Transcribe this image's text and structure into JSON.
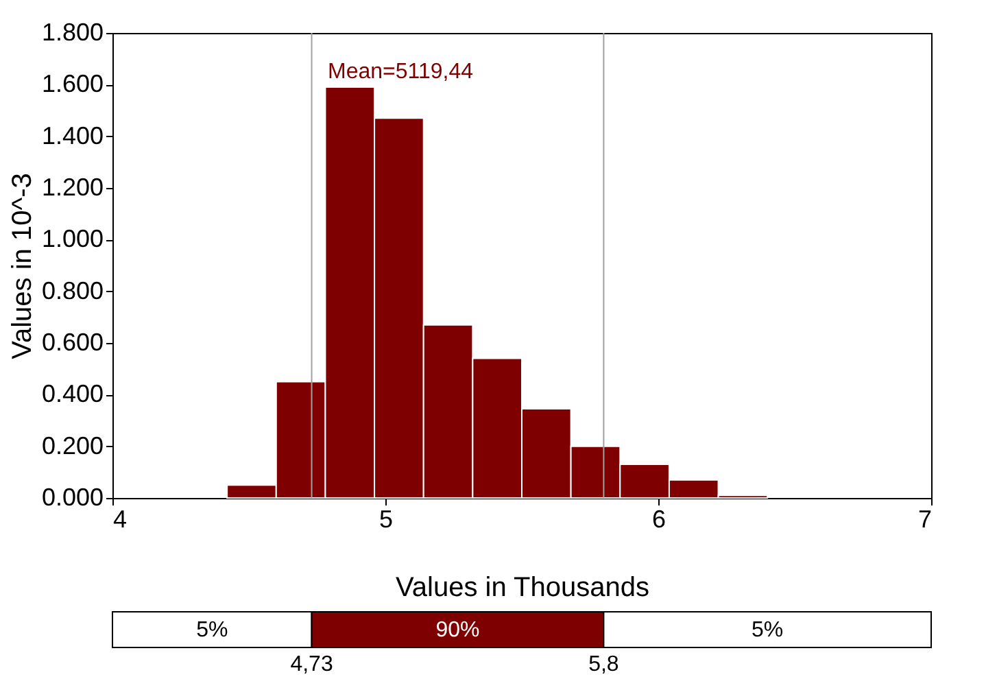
{
  "chart_data": {
    "type": "histogram",
    "xlabel": "Values in Thousands",
    "ylabel": "Values in 10^-3",
    "bins": [
      4.42,
      4.6,
      4.78,
      4.96,
      5.14,
      5.32,
      5.5,
      5.68,
      5.86,
      6.04,
      6.22,
      6.4
    ],
    "values": [
      0.05,
      0.45,
      1.59,
      1.47,
      0.67,
      0.54,
      0.345,
      0.2,
      0.13,
      0.07,
      0.01
    ],
    "color": "#7f0000",
    "xlim": [
      4,
      7
    ],
    "xticks": [
      {
        "value": 4,
        "label": "4"
      },
      {
        "value": 5,
        "label": "5"
      },
      {
        "value": 6,
        "label": "6"
      },
      {
        "value": 7,
        "label": "7"
      }
    ],
    "ylim": [
      0,
      1.8
    ],
    "yticks": [
      {
        "value": 0,
        "label": "0.000"
      },
      {
        "value": 0.2,
        "label": "0.200"
      },
      {
        "value": 0.4,
        "label": "0.400"
      },
      {
        "value": 0.6,
        "label": "0.600"
      },
      {
        "value": 0.8,
        "label": "0.800"
      },
      {
        "value": 1.0,
        "label": "1.000"
      },
      {
        "value": 1.2,
        "label": "1.200"
      },
      {
        "value": 1.4,
        "label": "1.400"
      },
      {
        "value": 1.6,
        "label": "1.600"
      },
      {
        "value": 1.8,
        "label": "1.800"
      }
    ],
    "ref_lines": [
      {
        "axis": "x",
        "value": 4.73,
        "color": "#a0a0a0"
      },
      {
        "axis": "x",
        "value": 5.8,
        "color": "#a0a0a0"
      }
    ],
    "annotations": [
      "Mean=5119,44",
      "5%",
      "90%",
      "5%",
      "4,73",
      "5,8"
    ],
    "grid": false
  }
}
